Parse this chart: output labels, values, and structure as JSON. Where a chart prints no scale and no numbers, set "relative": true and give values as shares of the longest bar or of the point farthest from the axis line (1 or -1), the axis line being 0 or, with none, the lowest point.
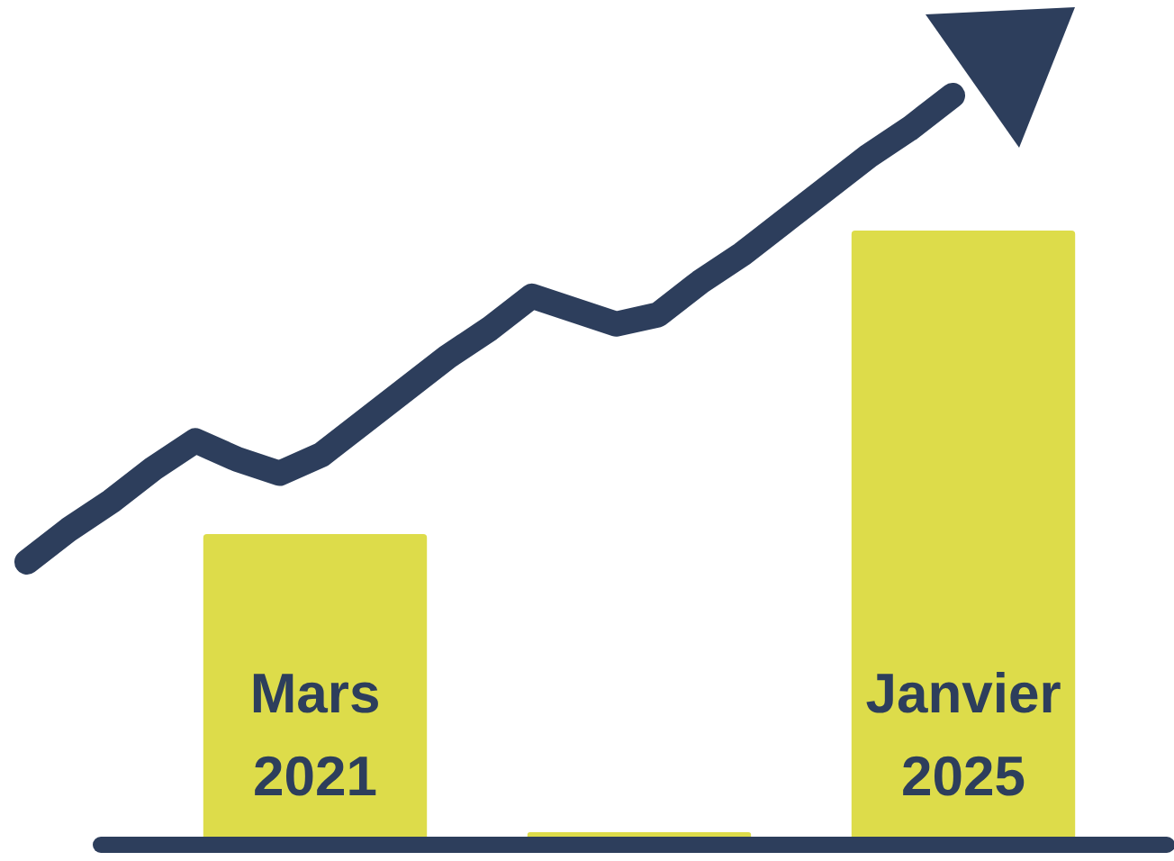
{
  "chart_data": [
    {
      "type": "bar",
      "relative": true,
      "categories": [
        "Mars 2021",
        null,
        "Janvier 2025"
      ],
      "values": [
        0.5,
        0,
        1
      ],
      "color": "#dddc4a"
    },
    {
      "type": "line",
      "relative": true,
      "color": "#2d3e5c",
      "categories": [
        null,
        null,
        null,
        null,
        null,
        null,
        null,
        null,
        null,
        null,
        null,
        null,
        null,
        null,
        null,
        null,
        null,
        null,
        null,
        null,
        null,
        null,
        null
      ],
      "values": [
        0,
        0.07,
        0.13,
        0.2,
        0.26,
        0.22,
        0.19,
        0.23,
        0.3,
        0.37,
        0.44,
        0.5,
        0.57,
        0.54,
        0.51,
        0.53,
        0.6,
        0.66,
        0.73,
        0.8,
        0.87,
        0.93,
        1
      ]
    }
  ]
}
